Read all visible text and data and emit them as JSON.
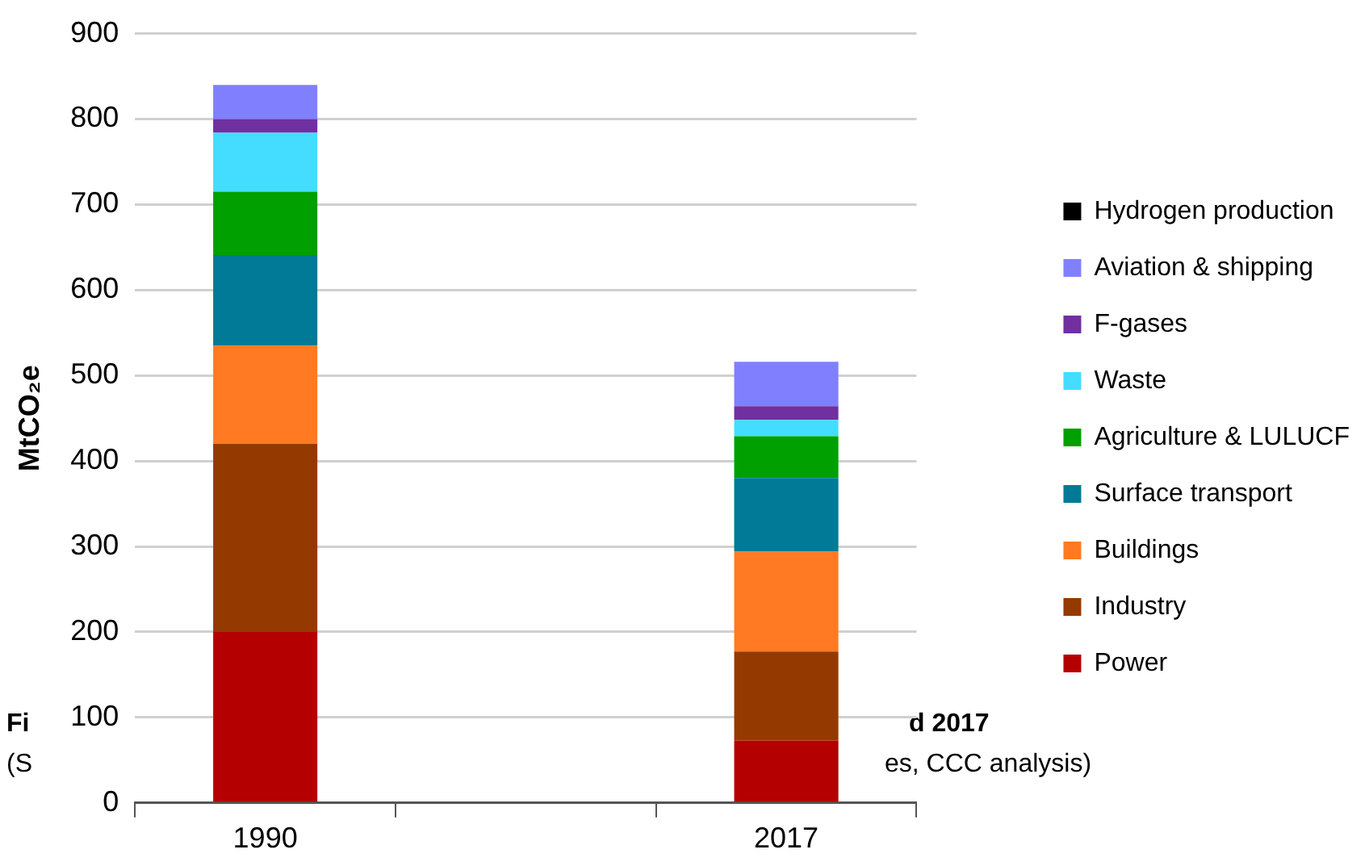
{
  "chart_data": {
    "type": "bar",
    "stacked": true,
    "ylabel": "MtCO₂e",
    "categories": [
      "1990",
      null,
      "2017"
    ],
    "ylim": [
      0,
      900
    ],
    "yticks": [
      0,
      100,
      200,
      300,
      400,
      500,
      600,
      700,
      800,
      900
    ],
    "grid": "y",
    "legend": "right",
    "series": [
      {
        "name": "Power",
        "color": "#b40000",
        "values": [
          200,
          null,
          73
        ]
      },
      {
        "name": "Industry",
        "color": "#943a00",
        "values": [
          220,
          null,
          104
        ]
      },
      {
        "name": "Buildings",
        "color": "#ff7a22",
        "values": [
          115,
          null,
          117
        ]
      },
      {
        "name": "Surface transport",
        "color": "#007a96",
        "values": [
          106,
          null,
          86
        ]
      },
      {
        "name": "Agriculture & LULUCF",
        "color": "#00a000",
        "values": [
          74,
          null,
          49
        ]
      },
      {
        "name": "Waste",
        "color": "#44ddff",
        "values": [
          69,
          null,
          19
        ]
      },
      {
        "name": "F-gases",
        "color": "#7030a0",
        "values": [
          16,
          null,
          16
        ]
      },
      {
        "name": "Aviation & shipping",
        "color": "#8080ff",
        "values": [
          40,
          null,
          52
        ]
      },
      {
        "name": "Hydrogen production",
        "color": "#000000",
        "values": [
          0,
          null,
          0
        ]
      }
    ],
    "annotations": [
      "Fi",
      "d 2017",
      "(S",
      "es, CCC analysis)"
    ]
  }
}
